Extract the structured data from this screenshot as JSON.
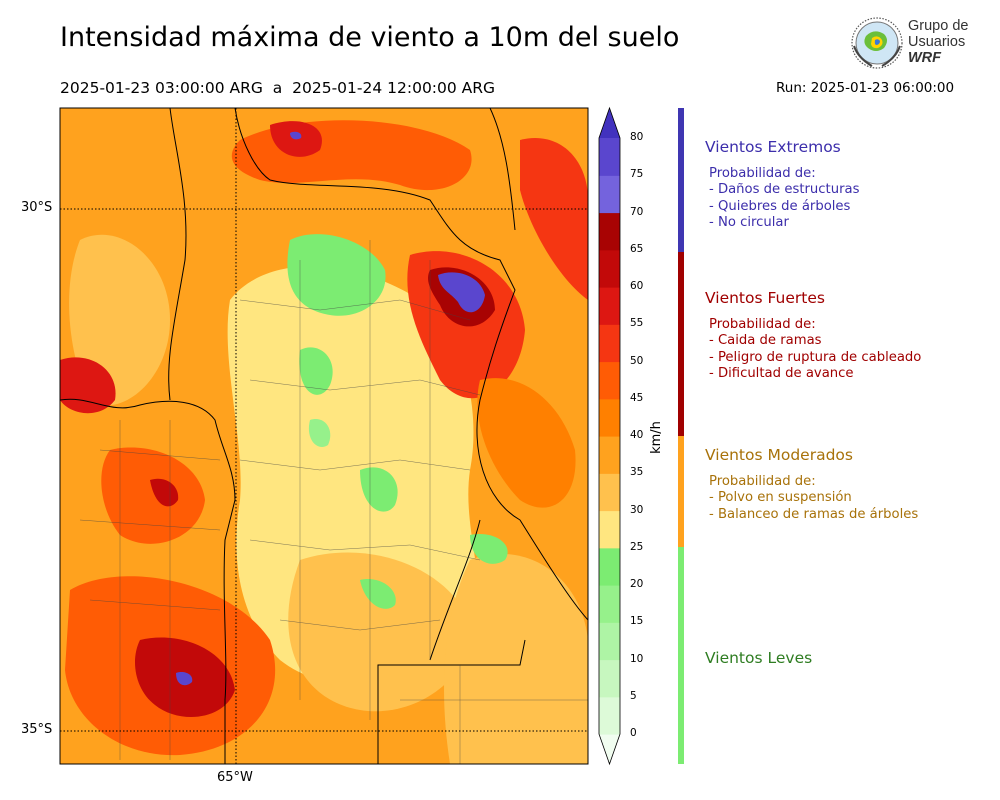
{
  "title": "Intensidad máxima de viento a 10m del suelo",
  "subtitle": "2025-01-23 03:00:00 ARG  a  2025-01-24 12:00:00 ARG",
  "run": "Run: 2025-01-23 06:00:00",
  "logo": {
    "line1": "Grupo de",
    "line2": "Usuarios",
    "line3": "WRF",
    "icon": "globe-logo-icon"
  },
  "map": {
    "lat_labels": [
      "30°S",
      "35°S"
    ],
    "lon_labels": [
      "65°W"
    ],
    "gridlines": "dotted"
  },
  "colorbar": {
    "unit": "km/h",
    "ticks": [
      "0",
      "5",
      "10",
      "15",
      "20",
      "25",
      "30",
      "35",
      "40",
      "45",
      "50",
      "55",
      "60",
      "65",
      "70",
      "75",
      "80"
    ],
    "colors": [
      "#f1fdf0",
      "#ddfad8",
      "#c7f7bf",
      "#aef4a5",
      "#96f18b",
      "#7cec72",
      "#ffe680",
      "#ffc14d",
      "#ffa21e",
      "#ff8000",
      "#ff5c05",
      "#f53612",
      "#dd1712",
      "#c20909",
      "#a80303",
      "#7463dd",
      "#5a46ce",
      "#4232be"
    ],
    "extend": "both"
  },
  "categories": [
    {
      "title": "Vientos Extremos",
      "color": "#3c2eab",
      "lines": "Probabilidad de:\n- Daños de estructuras\n- Quiebres de árboles\n- No circular"
    },
    {
      "title": "Vientos Fuertes",
      "color": "#a00000",
      "lines": "Probabilidad de:\n- Caida de ramas\n- Peligro de ruptura de cableado\n- Dificultad de avance"
    },
    {
      "title": "Vientos Moderados",
      "color": "#a8720a",
      "lines": "Probabilidad de:\n- Polvo en suspensión\n- Balanceo de ramas de árboles"
    },
    {
      "title": "Vientos Leves",
      "color": "#2f7d22",
      "lines": ""
    }
  ],
  "bands": [
    "#3f36b2",
    "#a00000",
    "#ffa21e",
    "#7cec72"
  ]
}
